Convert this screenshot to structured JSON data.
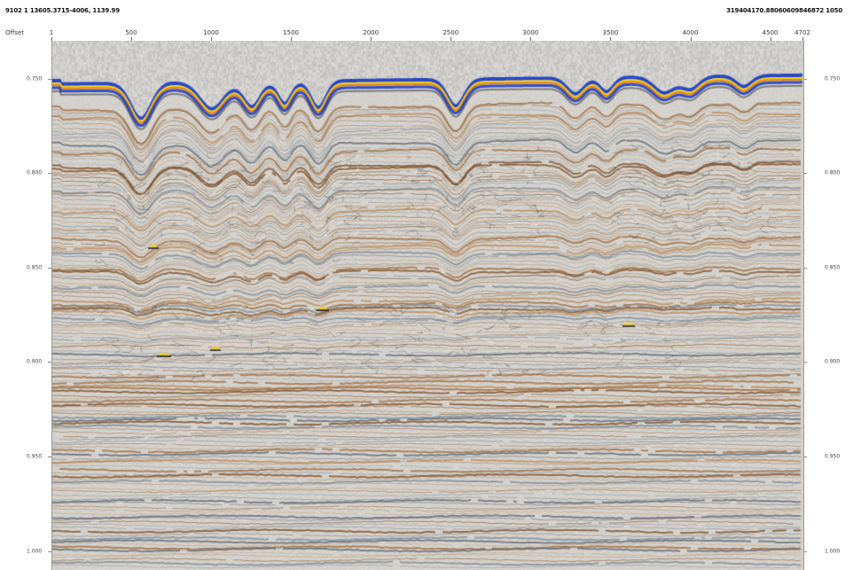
{
  "header": {
    "left_text": "9102 1 13605.3715-4006, 1139.99",
    "right_text": "319404170.88060609846872 1050"
  },
  "axis": {
    "offset_label": "Offset",
    "x_ticks": [
      {
        "label": "1",
        "value": 1
      },
      {
        "label": "500",
        "value": 500
      },
      {
        "label": "1000",
        "value": 1000
      },
      {
        "label": "1500",
        "value": 1500
      },
      {
        "label": "2000",
        "value": 2000
      },
      {
        "label": "2500",
        "value": 2500
      },
      {
        "label": "3000",
        "value": 3000
      },
      {
        "label": "3500",
        "value": 3500
      },
      {
        "label": "4000",
        "value": 4000
      },
      {
        "label": "4500",
        "value": 4500
      },
      {
        "label": "4702",
        "value": 4702
      }
    ],
    "x_range": [
      1,
      4702
    ],
    "y_ticks": [
      {
        "label": "0.750",
        "value": 0.75
      },
      {
        "label": "0.800",
        "value": 0.8
      },
      {
        "label": "0.850",
        "value": 0.85
      },
      {
        "label": "0.900",
        "value": 0.9
      },
      {
        "label": "0.950",
        "value": 0.95
      },
      {
        "label": "1.000",
        "value": 1.0
      }
    ],
    "y_range": [
      0.73,
      1.01
    ]
  },
  "colors": {
    "background": "#d8d6d2",
    "blue_event": "#1e3fc8",
    "yellow_event": "#f2d020",
    "orange_event": "#e07a20",
    "brown_reflector": "#7a4a22",
    "tan_reflector": "#b88a5a",
    "grey_reflector": "#7d8994",
    "water_column": "#cfcdc9"
  }
}
